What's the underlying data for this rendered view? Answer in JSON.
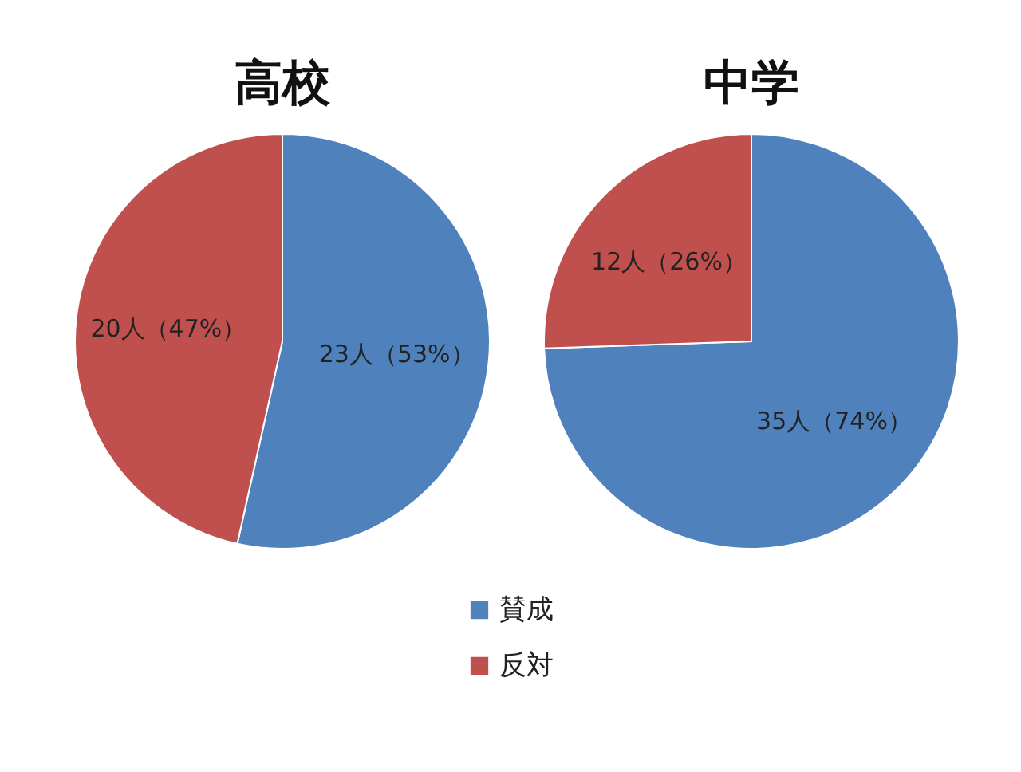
{
  "chart_data": [
    {
      "type": "pie",
      "title": "高校",
      "categories": [
        "賛成",
        "反対"
      ],
      "values": [
        23,
        20
      ],
      "colors": [
        "#4f81bd",
        "#c0504d"
      ],
      "value_labels": [
        "23人（53%）",
        "20人（47%）"
      ],
      "legend": "bottom"
    },
    {
      "type": "pie",
      "title": "中学",
      "categories": [
        null,
        null
      ],
      "values": [
        35,
        12
      ],
      "colors": [
        "#4f81bd",
        "#c0504d"
      ],
      "value_labels": [
        "35人（74%）",
        "12人（26%）"
      ]
    }
  ]
}
